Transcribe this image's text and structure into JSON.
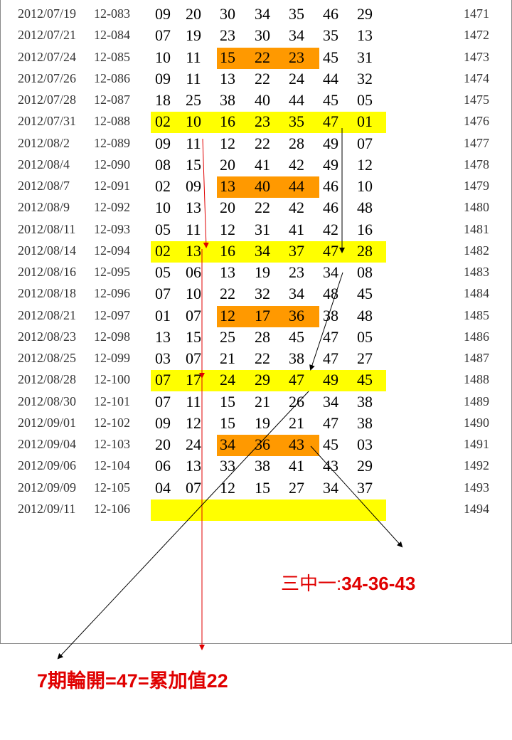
{
  "colors": {
    "yellow_highlight": "#ffff00",
    "orange_highlight": "#ff9900",
    "annotation_red": "#e00000"
  },
  "rows": [
    {
      "date": "2012/07/19",
      "period": "12-083",
      "numbers": [
        "09",
        "20",
        "30",
        "34",
        "35",
        "46",
        "29"
      ],
      "index": "1471",
      "highlight": ""
    },
    {
      "date": "2012/07/21",
      "period": "12-084",
      "numbers": [
        "07",
        "19",
        "23",
        "30",
        "34",
        "35",
        "13"
      ],
      "index": "1472",
      "highlight": ""
    },
    {
      "date": "2012/07/24",
      "period": "12-085",
      "numbers": [
        "10",
        "11",
        "15",
        "22",
        "23",
        "45",
        "31"
      ],
      "index": "1473",
      "highlight": "orange"
    },
    {
      "date": "2012/07/26",
      "period": "12-086",
      "numbers": [
        "09",
        "11",
        "13",
        "22",
        "24",
        "44",
        "32"
      ],
      "index": "1474",
      "highlight": ""
    },
    {
      "date": "2012/07/28",
      "period": "12-087",
      "numbers": [
        "18",
        "25",
        "38",
        "40",
        "44",
        "45",
        "05"
      ],
      "index": "1475",
      "highlight": ""
    },
    {
      "date": "2012/07/31",
      "period": "12-088",
      "numbers": [
        "02",
        "10",
        "16",
        "23",
        "35",
        "47",
        "01"
      ],
      "index": "1476",
      "highlight": "yellow"
    },
    {
      "date": "2012/08/2",
      "period": "12-089",
      "numbers": [
        "09",
        "11",
        "12",
        "22",
        "28",
        "49",
        "07"
      ],
      "index": "1477",
      "highlight": ""
    },
    {
      "date": "2012/08/4",
      "period": "12-090",
      "numbers": [
        "08",
        "15",
        "20",
        "41",
        "42",
        "49",
        "12"
      ],
      "index": "1478",
      "highlight": ""
    },
    {
      "date": "2012/08/7",
      "period": "12-091",
      "numbers": [
        "02",
        "09",
        "13",
        "40",
        "44",
        "46",
        "10"
      ],
      "index": "1479",
      "highlight": "orange"
    },
    {
      "date": "2012/08/9",
      "period": "12-092",
      "numbers": [
        "10",
        "13",
        "20",
        "22",
        "42",
        "46",
        "48"
      ],
      "index": "1480",
      "highlight": ""
    },
    {
      "date": "2012/08/11",
      "period": "12-093",
      "numbers": [
        "05",
        "11",
        "12",
        "31",
        "41",
        "42",
        "16"
      ],
      "index": "1481",
      "highlight": ""
    },
    {
      "date": "2012/08/14",
      "period": "12-094",
      "numbers": [
        "02",
        "13",
        "16",
        "34",
        "37",
        "47",
        "28"
      ],
      "index": "1482",
      "highlight": "yellow"
    },
    {
      "date": "2012/08/16",
      "period": "12-095",
      "numbers": [
        "05",
        "06",
        "13",
        "19",
        "23",
        "34",
        "08"
      ],
      "index": "1483",
      "highlight": ""
    },
    {
      "date": "2012/08/18",
      "period": "12-096",
      "numbers": [
        "07",
        "10",
        "22",
        "32",
        "34",
        "48",
        "45"
      ],
      "index": "1484",
      "highlight": ""
    },
    {
      "date": "2012/08/21",
      "period": "12-097",
      "numbers": [
        "01",
        "07",
        "12",
        "17",
        "36",
        "38",
        "48"
      ],
      "index": "1485",
      "highlight": "orange"
    },
    {
      "date": "2012/08/23",
      "period": "12-098",
      "numbers": [
        "13",
        "15",
        "25",
        "28",
        "45",
        "47",
        "05"
      ],
      "index": "1486",
      "highlight": ""
    },
    {
      "date": "2012/08/25",
      "period": "12-099",
      "numbers": [
        "03",
        "07",
        "21",
        "22",
        "38",
        "47",
        "27"
      ],
      "index": "1487",
      "highlight": ""
    },
    {
      "date": "2012/08/28",
      "period": "12-100",
      "numbers": [
        "07",
        "17",
        "24",
        "29",
        "47",
        "49",
        "45"
      ],
      "index": "1488",
      "highlight": "yellow"
    },
    {
      "date": "2012/08/30",
      "period": "12-101",
      "numbers": [
        "07",
        "11",
        "15",
        "21",
        "26",
        "34",
        "38"
      ],
      "index": "1489",
      "highlight": ""
    },
    {
      "date": "2012/09/01",
      "period": "12-102",
      "numbers": [
        "09",
        "12",
        "15",
        "19",
        "21",
        "47",
        "38"
      ],
      "index": "1490",
      "highlight": ""
    },
    {
      "date": "2012/09/04",
      "period": "12-103",
      "numbers": [
        "20",
        "24",
        "34",
        "36",
        "43",
        "45",
        "03"
      ],
      "index": "1491",
      "highlight": "orange"
    },
    {
      "date": "2012/09/06",
      "period": "12-104",
      "numbers": [
        "06",
        "13",
        "33",
        "38",
        "41",
        "43",
        "29"
      ],
      "index": "1492",
      "highlight": ""
    },
    {
      "date": "2012/09/09",
      "period": "12-105",
      "numbers": [
        "04",
        "07",
        "12",
        "15",
        "27",
        "34",
        "37"
      ],
      "index": "1493",
      "highlight": ""
    },
    {
      "date": "2012/09/11",
      "period": "12-106",
      "numbers": [],
      "index": "1494",
      "highlight": "yellow"
    }
  ],
  "annotations": {
    "three_hit_prefix": "三中一:",
    "three_hit_numbers": "34-36-43",
    "cycle_note": "7期輪開=47=累加值22"
  }
}
